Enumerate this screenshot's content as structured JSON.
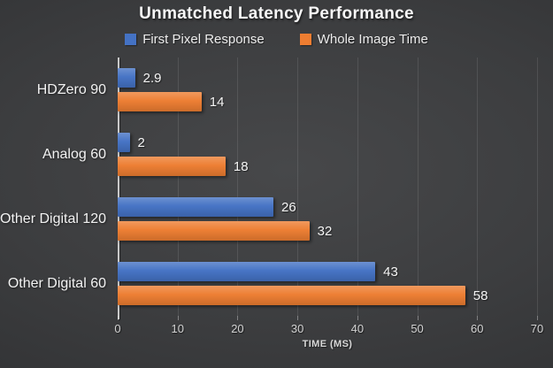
{
  "title": "Unmatched Latency Performance",
  "legend": [
    {
      "label": "First Pixel Response",
      "color": "#4472C4"
    },
    {
      "label": "Whole Image Time",
      "color": "#ED7D31"
    }
  ],
  "colors": {
    "series_blue": "#4472C4",
    "series_orange": "#ED7D31",
    "background_center": "#47484a",
    "background_edge": "#2b2c2e",
    "text": "#f2f2f2",
    "tick_text": "#d2d2d2"
  },
  "chart_data": {
    "type": "bar",
    "orientation": "horizontal",
    "title": "Unmatched Latency Performance",
    "categories": [
      "HDZero 90",
      "Analog 60",
      "Other Digital 120",
      "Other Digital 60"
    ],
    "series": [
      {
        "name": "First Pixel Response",
        "color": "#4472C4",
        "values": [
          2.9,
          2,
          26,
          43
        ]
      },
      {
        "name": "Whole Image Time",
        "color": "#ED7D31",
        "values": [
          14,
          18,
          32,
          58
        ]
      }
    ],
    "xlabel": "TIME (MS)",
    "ylabel": "",
    "xlim": [
      0,
      70
    ],
    "xticks": [
      0,
      10,
      20,
      30,
      40,
      50,
      60,
      70
    ],
    "grid": true,
    "legend_position": "top",
    "data_labels": true
  }
}
